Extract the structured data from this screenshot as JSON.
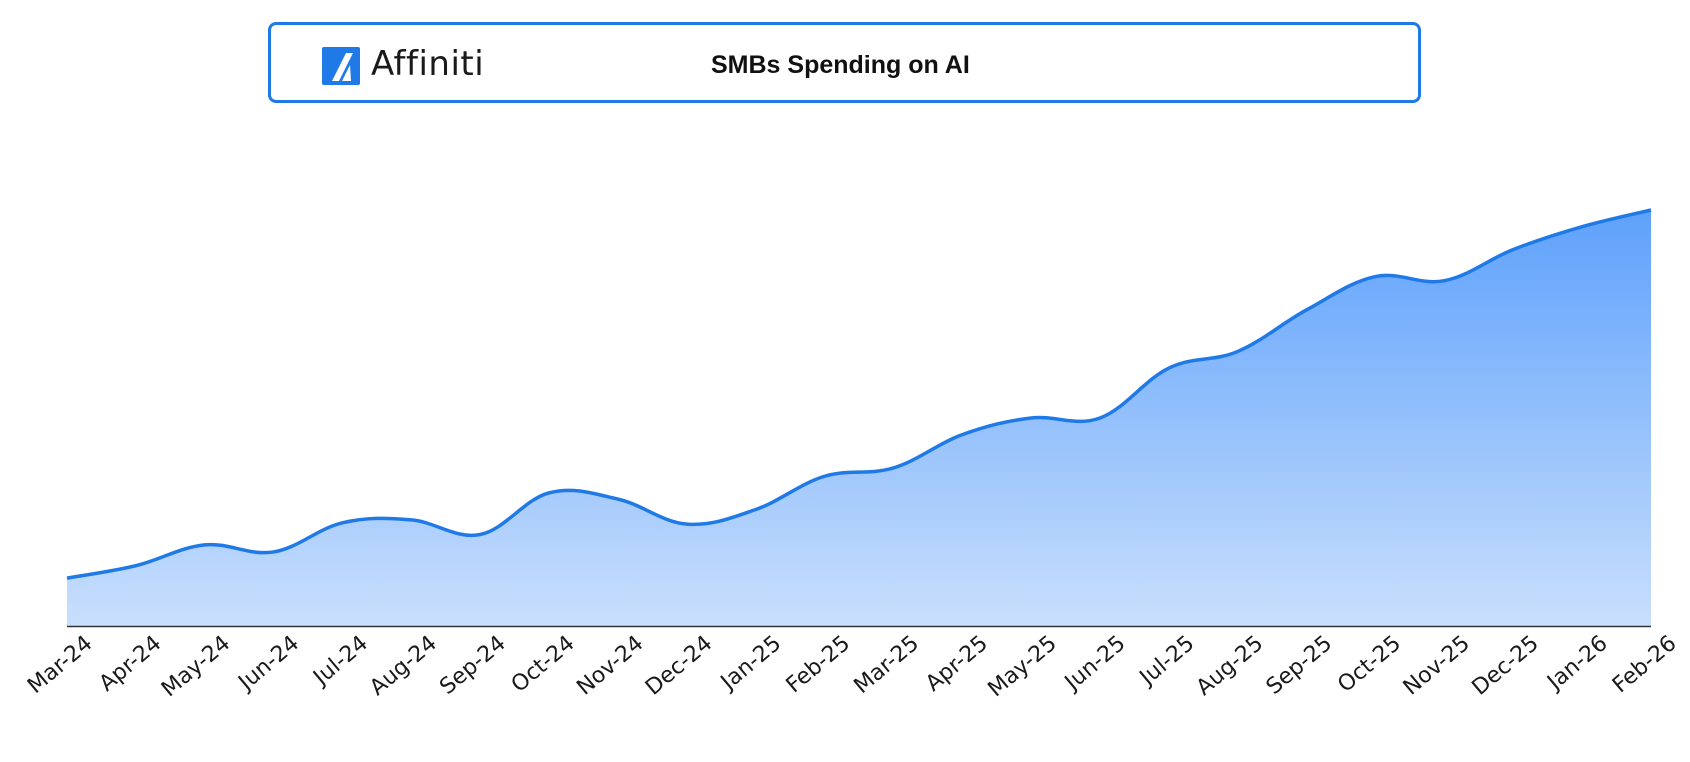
{
  "header": {
    "brand_name": "Affiniti",
    "accent_color": "#1f7ae8",
    "logo_icon": "affiniti-logo-icon"
  },
  "chart_data": {
    "type": "area",
    "title": "SMBs Spending on AI",
    "xlabel": "",
    "ylabel": "",
    "y_axis_visible": false,
    "grid": false,
    "legend": "none",
    "line_color": "#1f7ae8",
    "fill_top_color": "#5ea1fb",
    "fill_bottom_color": "#c9dffd",
    "ylim": [
      0,
      100
    ],
    "categories": [
      "Mar-24",
      "Apr-24",
      "May-24",
      "Jun-24",
      "Jul-24",
      "Aug-24",
      "Sep-24",
      "Oct-24",
      "Nov-24",
      "Dec-24",
      "Jan-25",
      "Feb-25",
      "Mar-25",
      "Apr-25",
      "May-25",
      "Jun-25",
      "Jul-25",
      "Aug-25",
      "Sep-25",
      "Oct-25",
      "Nov-25",
      "Dec-25",
      "Jan-26",
      "Feb-26"
    ],
    "series": [
      {
        "values": [
          11.5,
          14.5,
          19.5,
          17.8,
          24.8,
          25.5,
          22,
          32,
          30.5,
          24.5,
          28,
          36,
          38,
          46,
          50,
          50,
          62,
          66,
          76,
          84,
          83,
          90.5,
          96,
          100
        ]
      }
    ]
  }
}
